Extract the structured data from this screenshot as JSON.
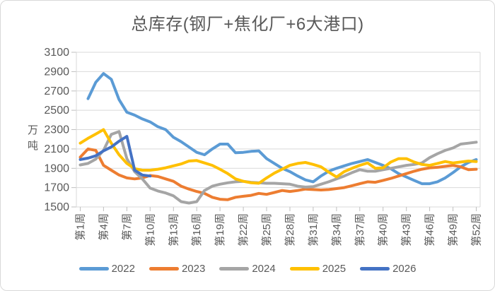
{
  "title": "总库存(钢厂+焦化厂+6大港口)",
  "y_axis": {
    "unit": "万吨",
    "ticks": [
      1500,
      1700,
      1900,
      2100,
      2300,
      2500,
      2700,
      2900,
      3100
    ]
  },
  "x_axis": {
    "tick_labels": [
      "第1周",
      "第4周",
      "第7周",
      "第10周",
      "第13周",
      "第16周",
      "第19周",
      "第22周",
      "第25周",
      "第28周",
      "第31周",
      "第34周",
      "第37周",
      "第40周",
      "第43周",
      "第46周",
      "第49周",
      "第52周"
    ],
    "tick_weeks": [
      1,
      4,
      7,
      10,
      13,
      16,
      19,
      22,
      25,
      28,
      31,
      34,
      37,
      40,
      43,
      46,
      49,
      52
    ]
  },
  "legend": [
    "2022",
    "2023",
    "2024",
    "2025",
    "2026"
  ],
  "colors": {
    "grid": "#d9d9d9",
    "tick": "#bfbfbf",
    "axis_text": "#595959",
    "title_text": "#595959"
  },
  "chart_data": {
    "type": "line",
    "title": "总库存(钢厂+焦化厂+6大港口)",
    "ylabel": "万吨",
    "ylim": [
      1500,
      3100
    ],
    "y_step": 200,
    "x_weeks": 52,
    "grid": true,
    "legend_position": "bottom",
    "x_tick_weeks": [
      1,
      4,
      7,
      10,
      13,
      16,
      19,
      22,
      25,
      28,
      31,
      34,
      37,
      40,
      43,
      46,
      49,
      52
    ],
    "x_tick_labels": [
      "第1周",
      "第4周",
      "第7周",
      "第10周",
      "第13周",
      "第16周",
      "第19周",
      "第22周",
      "第25周",
      "第28周",
      "第31周",
      "第34周",
      "第37周",
      "第40周",
      "第43周",
      "第46周",
      "第49周",
      "第52周"
    ],
    "series": [
      {
        "name": "2022",
        "color": "#5B9BD5",
        "values": [
          null,
          2620,
          2790,
          2880,
          2820,
          2610,
          2480,
          2450,
          2410,
          2380,
          2330,
          2300,
          2220,
          2175,
          2120,
          2065,
          2040,
          2100,
          2150,
          2150,
          2060,
          2065,
          2075,
          2080,
          2000,
          1950,
          1900,
          1865,
          1820,
          1780,
          1760,
          1820,
          1870,
          1900,
          1925,
          1950,
          1970,
          1990,
          1960,
          1930,
          1895,
          1845,
          1810,
          1775,
          1740,
          1740,
          1760,
          1800,
          1855,
          1915,
          1960,
          1990
        ]
      },
      {
        "name": "2023",
        "color": "#ED7D31",
        "values": [
          2015,
          2100,
          2085,
          1930,
          1880,
          1830,
          1800,
          1790,
          1800,
          1825,
          1815,
          1790,
          1765,
          1715,
          1685,
          1660,
          1640,
          1600,
          1580,
          1575,
          1600,
          1610,
          1620,
          1640,
          1630,
          1650,
          1670,
          1660,
          1670,
          1685,
          1680,
          1675,
          1680,
          1690,
          1700,
          1720,
          1740,
          1760,
          1755,
          1775,
          1795,
          1820,
          1845,
          1870,
          1890,
          1905,
          1910,
          1920,
          1930,
          1915,
          1885,
          1890
        ]
      },
      {
        "name": "2024",
        "color": "#A5A5A5",
        "values": [
          1935,
          1950,
          1995,
          2085,
          2250,
          2280,
          2000,
          1865,
          1790,
          1695,
          1665,
          1645,
          1615,
          1555,
          1540,
          1555,
          1670,
          1715,
          1735,
          1750,
          1760,
          1765,
          1755,
          1750,
          1745,
          1745,
          1740,
          1735,
          1715,
          1705,
          1710,
          1735,
          1760,
          1790,
          1820,
          1855,
          1885,
          1870,
          1870,
          1885,
          1900,
          1915,
          1930,
          1940,
          1955,
          2010,
          2050,
          2085,
          2110,
          2150,
          2160,
          2170
        ]
      },
      {
        "name": "2025",
        "color": "#FFC000",
        "values": [
          2160,
          2210,
          2255,
          2300,
          2160,
          2040,
          1950,
          1895,
          1880,
          1880,
          1890,
          1905,
          1925,
          1945,
          1975,
          1980,
          1955,
          1930,
          1890,
          1845,
          1790,
          1765,
          1750,
          1745,
          1800,
          1850,
          1890,
          1930,
          1950,
          1960,
          1940,
          1915,
          1860,
          1810,
          1865,
          1900,
          1930,
          1955,
          1900,
          1905,
          1965,
          2000,
          2000,
          1965,
          1940,
          1930,
          1950,
          1970,
          1955,
          1965,
          1975,
          1970
        ]
      },
      {
        "name": "2026",
        "color": "#4472C4",
        "values": [
          1990,
          2005,
          2030,
          2080,
          2120,
          2180,
          2230,
          1880,
          1830,
          1820,
          null,
          null,
          null,
          null,
          null,
          null,
          null,
          null,
          null,
          null,
          null,
          null,
          null,
          null,
          null,
          null,
          null,
          null,
          null,
          null,
          null,
          null,
          null,
          null,
          null,
          null,
          null,
          null,
          null,
          null,
          null,
          null,
          null,
          null,
          null,
          null,
          null,
          null,
          null,
          null,
          null,
          null
        ]
      }
    ]
  }
}
